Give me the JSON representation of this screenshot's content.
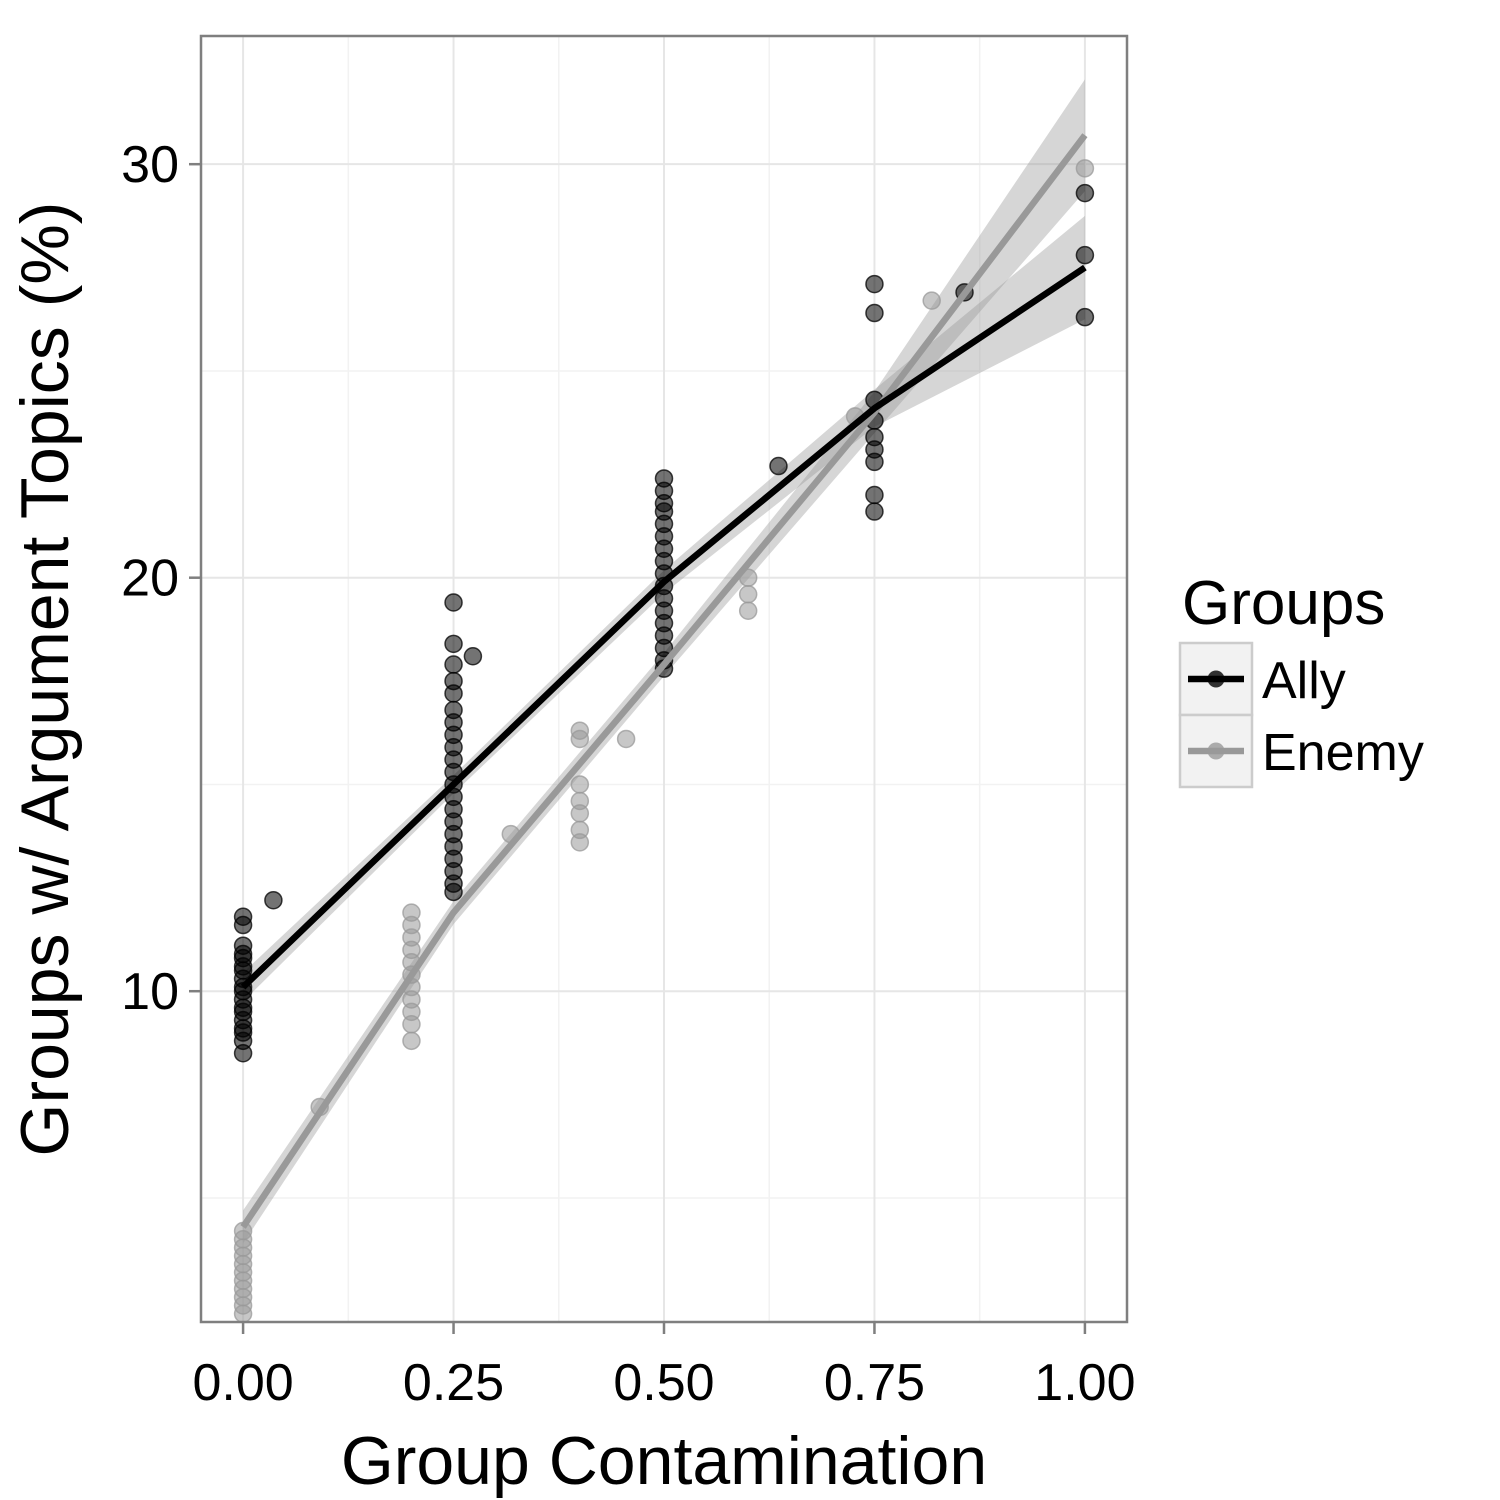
{
  "chart_data": {
    "type": "scatter",
    "title": "",
    "xlabel": "Group Contamination",
    "ylabel": "Groups w/ Argument Topics (%)",
    "xlim": [
      -0.05,
      1.05
    ],
    "ylim": [
      2.0,
      33.1
    ],
    "xticks": [
      0.0,
      0.25,
      0.5,
      0.75,
      1.0
    ],
    "xtick_labels": [
      "0.00",
      "0.25",
      "0.50",
      "0.75",
      "1.00"
    ],
    "yticks": [
      10,
      20,
      30
    ],
    "ytick_labels": [
      "10",
      "20",
      "30"
    ],
    "grid": true,
    "legend": {
      "title": "Groups",
      "position": "right"
    },
    "series": [
      {
        "name": "Ally",
        "color": "#000000",
        "points": [
          [
            0.0,
            11.8
          ],
          [
            0.0,
            11.6
          ],
          [
            0.0,
            11.1
          ],
          [
            0.0,
            10.9
          ],
          [
            0.0,
            10.8
          ],
          [
            0.0,
            10.6
          ],
          [
            0.0,
            10.5
          ],
          [
            0.0,
            10.3
          ],
          [
            0.0,
            10.1
          ],
          [
            0.0,
            10.0
          ],
          [
            0.0,
            9.8
          ],
          [
            0.0,
            9.6
          ],
          [
            0.0,
            9.5
          ],
          [
            0.0,
            9.3
          ],
          [
            0.0,
            9.1
          ],
          [
            0.0,
            9.0
          ],
          [
            0.0,
            8.8
          ],
          [
            0.0,
            8.5
          ],
          [
            0.036,
            12.2
          ],
          [
            0.25,
            19.4
          ],
          [
            0.25,
            18.4
          ],
          [
            0.25,
            17.9
          ],
          [
            0.25,
            17.5
          ],
          [
            0.25,
            17.2
          ],
          [
            0.25,
            16.8
          ],
          [
            0.25,
            16.5
          ],
          [
            0.25,
            16.2
          ],
          [
            0.25,
            15.9
          ],
          [
            0.25,
            15.6
          ],
          [
            0.25,
            15.3
          ],
          [
            0.25,
            15.0
          ],
          [
            0.25,
            14.7
          ],
          [
            0.25,
            14.4
          ],
          [
            0.25,
            14.1
          ],
          [
            0.25,
            13.8
          ],
          [
            0.25,
            13.5
          ],
          [
            0.25,
            13.2
          ],
          [
            0.25,
            12.9
          ],
          [
            0.25,
            12.6
          ],
          [
            0.25,
            12.4
          ],
          [
            0.273,
            18.1
          ],
          [
            0.5,
            22.4
          ],
          [
            0.5,
            22.1
          ],
          [
            0.5,
            21.8
          ],
          [
            0.5,
            21.6
          ],
          [
            0.5,
            21.3
          ],
          [
            0.5,
            21.0
          ],
          [
            0.5,
            20.7
          ],
          [
            0.5,
            20.4
          ],
          [
            0.5,
            20.1
          ],
          [
            0.5,
            19.8
          ],
          [
            0.5,
            19.5
          ],
          [
            0.5,
            19.2
          ],
          [
            0.5,
            18.9
          ],
          [
            0.5,
            18.6
          ],
          [
            0.5,
            18.3
          ],
          [
            0.5,
            18.0
          ],
          [
            0.5,
            17.8
          ],
          [
            0.636,
            22.7
          ],
          [
            0.75,
            27.1
          ],
          [
            0.75,
            26.4
          ],
          [
            0.75,
            24.3
          ],
          [
            0.75,
            23.8
          ],
          [
            0.75,
            23.4
          ],
          [
            0.75,
            23.1
          ],
          [
            0.75,
            22.8
          ],
          [
            0.75,
            22.0
          ],
          [
            0.75,
            21.6
          ],
          [
            0.857,
            26.9
          ],
          [
            1.0,
            29.3
          ],
          [
            1.0,
            27.8
          ],
          [
            1.0,
            26.3
          ]
        ],
        "fit": [
          [
            0.0,
            10.1
          ],
          [
            0.25,
            15.0
          ],
          [
            0.5,
            19.9
          ],
          [
            0.75,
            24.1
          ],
          [
            1.0,
            27.5
          ]
        ],
        "ci_halfwidth": [
          0.35,
          0.22,
          0.28,
          0.45,
          1.25
        ]
      },
      {
        "name": "Enemy",
        "color": "#999999",
        "points": [
          [
            0.0,
            4.2
          ],
          [
            0.0,
            4.0
          ],
          [
            0.0,
            3.8
          ],
          [
            0.0,
            3.6
          ],
          [
            0.0,
            3.4
          ],
          [
            0.0,
            3.2
          ],
          [
            0.0,
            3.0
          ],
          [
            0.0,
            2.8
          ],
          [
            0.0,
            2.6
          ],
          [
            0.0,
            2.4
          ],
          [
            0.0,
            2.2
          ],
          [
            0.091,
            7.2
          ],
          [
            0.2,
            11.9
          ],
          [
            0.2,
            11.6
          ],
          [
            0.2,
            11.3
          ],
          [
            0.2,
            11.0
          ],
          [
            0.2,
            10.7
          ],
          [
            0.2,
            10.4
          ],
          [
            0.2,
            10.1
          ],
          [
            0.2,
            9.8
          ],
          [
            0.2,
            9.5
          ],
          [
            0.2,
            9.2
          ],
          [
            0.2,
            8.8
          ],
          [
            0.318,
            13.8
          ],
          [
            0.4,
            16.3
          ],
          [
            0.4,
            16.1
          ],
          [
            0.4,
            15.0
          ],
          [
            0.4,
            14.6
          ],
          [
            0.4,
            14.3
          ],
          [
            0.4,
            13.9
          ],
          [
            0.4,
            13.6
          ],
          [
            0.455,
            16.1
          ],
          [
            0.6,
            20.0
          ],
          [
            0.6,
            19.6
          ],
          [
            0.6,
            19.2
          ],
          [
            0.727,
            23.9
          ],
          [
            0.818,
            26.7
          ],
          [
            1.0,
            29.9
          ]
        ],
        "fit": [
          [
            0.0,
            4.3
          ],
          [
            0.25,
            11.9
          ],
          [
            0.5,
            17.9
          ],
          [
            0.75,
            24.0
          ],
          [
            1.0,
            30.7
          ]
        ],
        "ci_halfwidth": [
          0.4,
          0.28,
          0.28,
          0.5,
          1.35
        ]
      }
    ]
  }
}
